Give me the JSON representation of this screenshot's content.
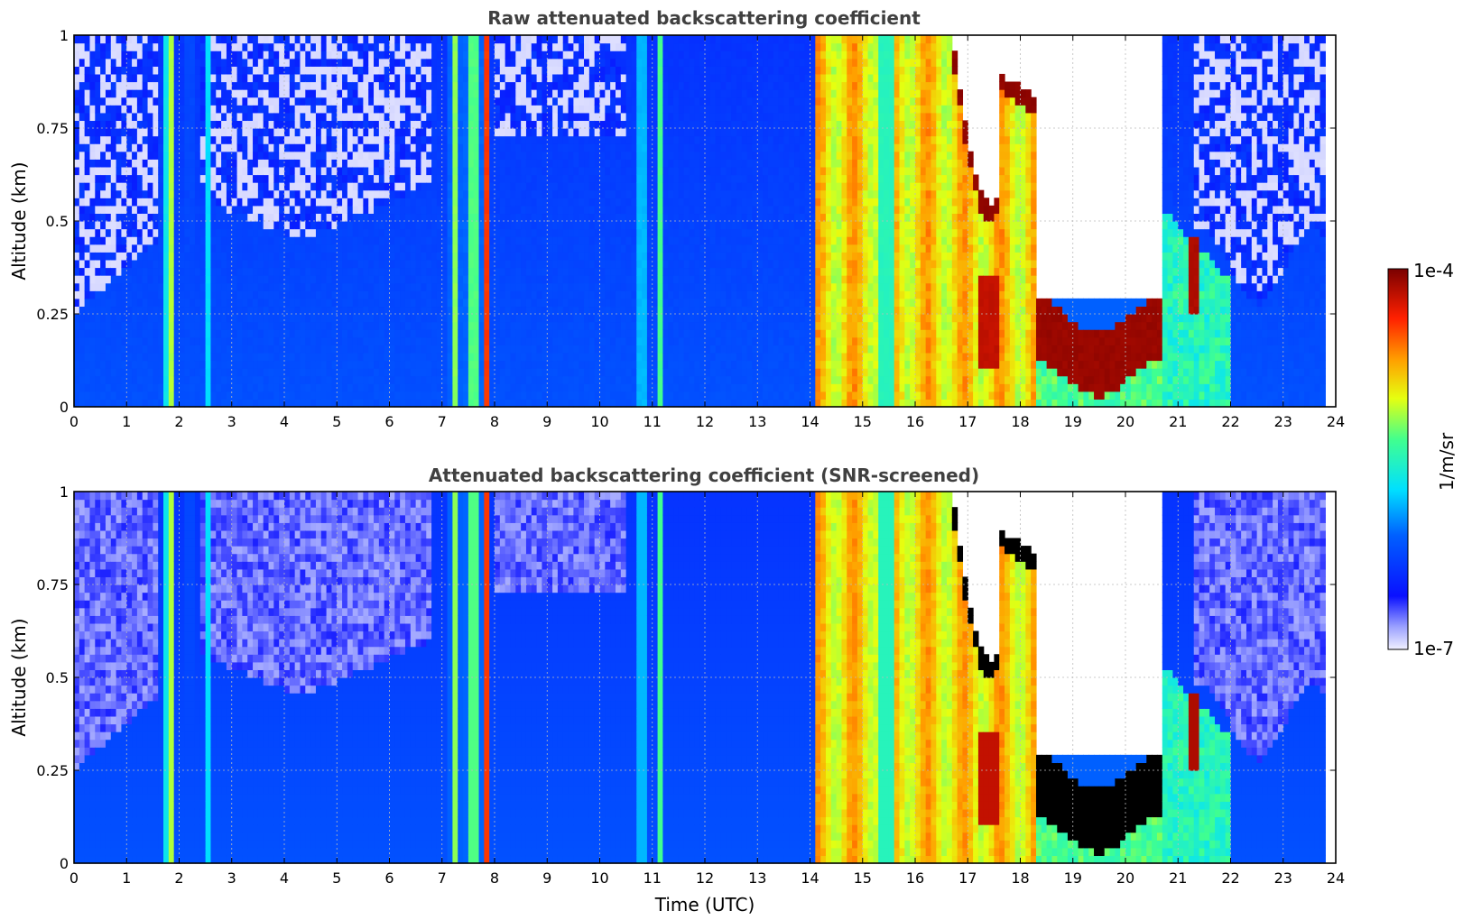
{
  "chart_data": [
    {
      "type": "heatmap",
      "title": "Raw attenuated backscattering coefficient",
      "xlabel": "",
      "ylabel": "Altitude (km)",
      "xlim": [
        0,
        24
      ],
      "ylim": [
        0,
        1
      ],
      "xticks": [
        "0",
        "1",
        "2",
        "3",
        "4",
        "5",
        "6",
        "7",
        "8",
        "9",
        "10",
        "11",
        "12",
        "13",
        "14",
        "15",
        "16",
        "17",
        "18",
        "19",
        "20",
        "21",
        "22",
        "23",
        "24"
      ],
      "yticks": [
        "0",
        "0.25",
        "0.5",
        "0.75",
        "1"
      ],
      "grid": true,
      "screened": false
    },
    {
      "type": "heatmap",
      "title": "Attenuated backscattering coefficient (SNR-screened)",
      "xlabel": "Time (UTC)",
      "ylabel": "Altitude (km)",
      "xlim": [
        0,
        24
      ],
      "ylim": [
        0,
        1
      ],
      "xticks": [
        "0",
        "1",
        "2",
        "3",
        "4",
        "5",
        "6",
        "7",
        "8",
        "9",
        "10",
        "11",
        "12",
        "13",
        "14",
        "15",
        "16",
        "17",
        "18",
        "19",
        "20",
        "21",
        "22",
        "23",
        "24"
      ],
      "yticks": [
        "0",
        "0.25",
        "0.5",
        "0.75",
        "1"
      ],
      "grid": true,
      "screened": true
    }
  ],
  "colorbar": {
    "label": "1/m/sr",
    "max_label": "1e-4",
    "min_label": "1e-7",
    "scale": "log",
    "range": [
      1e-07,
      0.0001
    ],
    "colormap": "jet"
  },
  "colors": {
    "title": "#404040",
    "clear_air": "#0a1cff",
    "cloud_core": "#7a0000",
    "screened_out": "#000000"
  }
}
